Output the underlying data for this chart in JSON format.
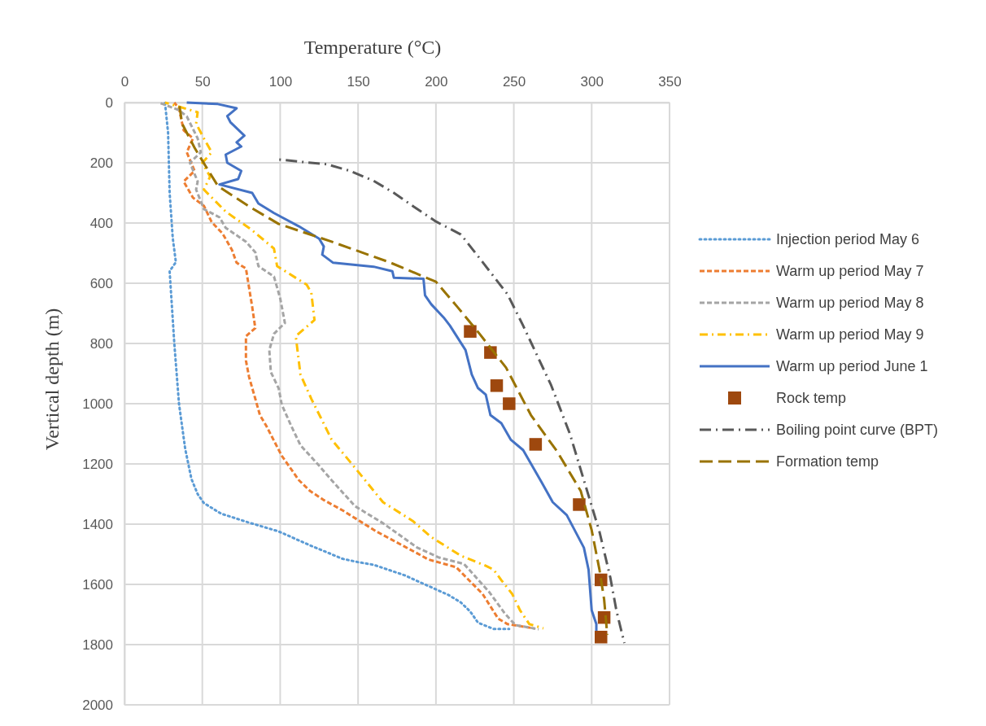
{
  "chart_data": {
    "type": "line",
    "xlabel": "Temperature (°C)",
    "ylabel": "Vertical depth (m)",
    "xlim": [
      0,
      350
    ],
    "xticks": [
      0,
      50,
      100,
      150,
      200,
      250,
      300,
      350
    ],
    "ylim": [
      2000,
      0
    ],
    "yticks": [
      0,
      200,
      400,
      600,
      800,
      1000,
      1200,
      1400,
      1600,
      1800,
      2000
    ],
    "grid": true,
    "legend": "right",
    "series": [
      {
        "name": "Injection period May 6",
        "color": "#5b9bd5",
        "line_style": "dotted",
        "x": [
          26,
          28,
          29,
          31,
          33,
          29,
          32,
          35,
          39,
          43,
          47,
          51,
          62,
          80,
          99,
          119,
          140,
          150,
          160,
          180,
          195,
          208,
          216,
          222,
          227,
          237,
          247
        ],
        "values": [
          0,
          100,
          300,
          450,
          530,
          560,
          800,
          1000,
          1150,
          1250,
          1300,
          1330,
          1365,
          1395,
          1424,
          1470,
          1515,
          1526,
          1535,
          1570,
          1605,
          1635,
          1660,
          1690,
          1727,
          1748,
          1748
        ]
      },
      {
        "name": "Warm up period May 7",
        "color": "#ed7d31",
        "line_style": "dashed",
        "x": [
          32,
          35,
          38,
          44,
          40,
          45,
          38,
          44,
          51,
          56,
          63,
          69,
          72,
          78,
          82,
          84,
          78,
          78,
          80,
          87,
          91,
          101,
          112,
          119,
          128,
          140,
          162,
          188,
          195,
          213,
          230,
          240,
          246,
          263
        ],
        "values": [
          0,
          20,
          92,
          119,
          165,
          227,
          262,
          316,
          343,
          397,
          435,
          489,
          532,
          551,
          678,
          749,
          776,
          857,
          911,
          1038,
          1073,
          1173,
          1254,
          1289,
          1320,
          1354,
          1425,
          1497,
          1517,
          1543,
          1632,
          1714,
          1732,
          1746
        ]
      },
      {
        "name": "Warm up period May 8",
        "color": "#a5a5a5",
        "line_style": "dashed",
        "x": [
          22,
          35,
          40,
          47,
          49,
          42,
          47,
          46,
          51,
          61,
          65,
          78,
          84,
          86,
          96,
          100,
          103,
          96,
          93,
          94,
          99,
          101,
          107,
          113,
          124,
          133,
          148,
          166,
          188,
          202,
          218,
          234,
          244,
          251,
          266
        ],
        "values": [
          0,
          25,
          46,
          119,
          165,
          200,
          262,
          289,
          354,
          381,
          416,
          462,
          497,
          543,
          578,
          650,
          732,
          768,
          822,
          895,
          949,
          1003,
          1073,
          1138,
          1200,
          1254,
          1340,
          1397,
          1478,
          1511,
          1532,
          1624,
          1695,
          1735,
          1749
        ]
      },
      {
        "name": "Warm up period May 9",
        "color": "#ffc000",
        "line_style": "dashdot",
        "x": [
          26,
          47,
          46,
          51,
          56,
          50,
          55,
          51,
          65,
          82,
          96,
          98,
          117,
          120,
          122,
          110,
          113,
          120,
          126,
          133,
          146,
          166,
          185,
          197,
          216,
          232,
          237,
          242,
          249,
          254,
          260,
          269
        ],
        "values": [
          0,
          32,
          70,
          119,
          165,
          200,
          246,
          289,
          362,
          424,
          485,
          543,
          605,
          632,
          722,
          776,
          903,
          984,
          1046,
          1119,
          1200,
          1327,
          1389,
          1443,
          1505,
          1538,
          1551,
          1586,
          1632,
          1686,
          1732,
          1746
        ]
      },
      {
        "name": "Warm up period June 1",
        "color": "#4472c4",
        "line_style": "solid",
        "x": [
          40,
          60,
          72,
          66,
          68,
          77,
          72,
          75,
          65,
          66,
          75,
          73,
          61,
          82,
          86,
          96,
          112,
          125,
          128,
          127,
          134,
          160,
          172,
          173,
          192,
          193,
          197,
          205,
          209,
          219,
          223,
          227,
          232,
          235,
          242,
          248,
          256,
          268,
          275,
          284,
          295,
          298,
          300,
          303,
          303
        ],
        "values": [
          0,
          5,
          19,
          45,
          65,
          110,
          132,
          146,
          173,
          200,
          227,
          254,
          272,
          300,
          335,
          367,
          411,
          452,
          478,
          505,
          532,
          545,
          560,
          582,
          585,
          640,
          670,
          714,
          741,
          822,
          903,
          948,
          970,
          1038,
          1065,
          1119,
          1154,
          1262,
          1327,
          1370,
          1478,
          1551,
          1686,
          1732,
          1760
        ]
      },
      {
        "name": "Rock temp",
        "type": "scatter",
        "marker": "square",
        "color": "#9e480e",
        "x": [
          222,
          235,
          239,
          247,
          264,
          292,
          306,
          308,
          306
        ],
        "values": [
          760,
          830,
          940,
          1000,
          1135,
          1335,
          1585,
          1710,
          1775
        ]
      },
      {
        "name": "Boiling point curve (BPT)",
        "color": "#595959",
        "line_style": "dashdotdot",
        "x": [
          99,
          114,
          130,
          145,
          160,
          173,
          187,
          200,
          216,
          230,
          246,
          256,
          274,
          286,
          295,
          305,
          312,
          316,
          321
        ],
        "values": [
          189,
          197,
          205,
          227,
          260,
          300,
          350,
          395,
          438,
          530,
          637,
          741,
          939,
          1100,
          1254,
          1425,
          1578,
          1690,
          1795
        ]
      },
      {
        "name": "Formation temp",
        "color": "#997300",
        "line_style": "longdash",
        "x": [
          35,
          37,
          45,
          52,
          60,
          80,
          99,
          133,
          170,
          200,
          214,
          228,
          245,
          261,
          278,
          293,
          300,
          305,
          308,
          310
        ],
        "values": [
          0,
          70,
          150,
          210,
          277,
          345,
          403,
          462,
          530,
          595,
          680,
          768,
          880,
          1038,
          1160,
          1290,
          1420,
          1551,
          1650,
          1767
        ]
      }
    ]
  }
}
